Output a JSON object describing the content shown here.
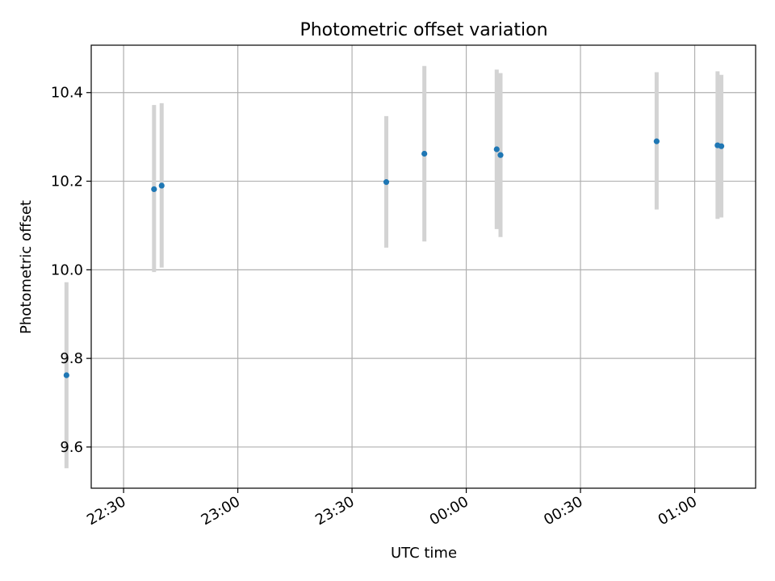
{
  "chart_data": {
    "type": "scatter",
    "title": "Photometric offset variation",
    "xlabel": "UTC time",
    "ylabel": "Photometric offset",
    "x_axis_type": "time",
    "xlim": [
      "22:21:30",
      "01:16:00"
    ],
    "ylim": [
      9.507,
      10.507
    ],
    "x_ticks": [
      "22:30",
      "23:00",
      "23:30",
      "00:00",
      "00:30",
      "01:00"
    ],
    "y_ticks": [
      9.6,
      9.8,
      10.0,
      10.2,
      10.4
    ],
    "grid": true,
    "legend": "none",
    "series": [
      {
        "points": [
          {
            "x": "22:15",
            "y": 9.762,
            "yerr_low": 9.552,
            "yerr_high": 9.972
          },
          {
            "x": "22:38",
            "y": 10.182,
            "yerr_low": 9.995,
            "yerr_high": 10.372
          },
          {
            "x": "22:40",
            "y": 10.19,
            "yerr_low": 10.005,
            "yerr_high": 10.376
          },
          {
            "x": "23:39",
            "y": 10.198,
            "yerr_low": 10.05,
            "yerr_high": 10.347
          },
          {
            "x": "23:49",
            "y": 10.262,
            "yerr_low": 10.064,
            "yerr_high": 10.46
          },
          {
            "x": "00:08",
            "y": 10.272,
            "yerr_low": 10.092,
            "yerr_high": 10.452
          },
          {
            "x": "00:09",
            "y": 10.259,
            "yerr_low": 10.074,
            "yerr_high": 10.444
          },
          {
            "x": "00:50",
            "y": 10.29,
            "yerr_low": 10.136,
            "yerr_high": 10.446
          },
          {
            "x": "01:06",
            "y": 10.281,
            "yerr_low": 10.115,
            "yerr_high": 10.448
          },
          {
            "x": "01:07",
            "y": 10.279,
            "yerr_low": 10.118,
            "yerr_high": 10.44
          }
        ]
      }
    ],
    "colors": {
      "points": "#1f77b4",
      "error_bars": "#d3d3d3",
      "grid": "#b0b0b0",
      "frame": "#000000"
    }
  }
}
